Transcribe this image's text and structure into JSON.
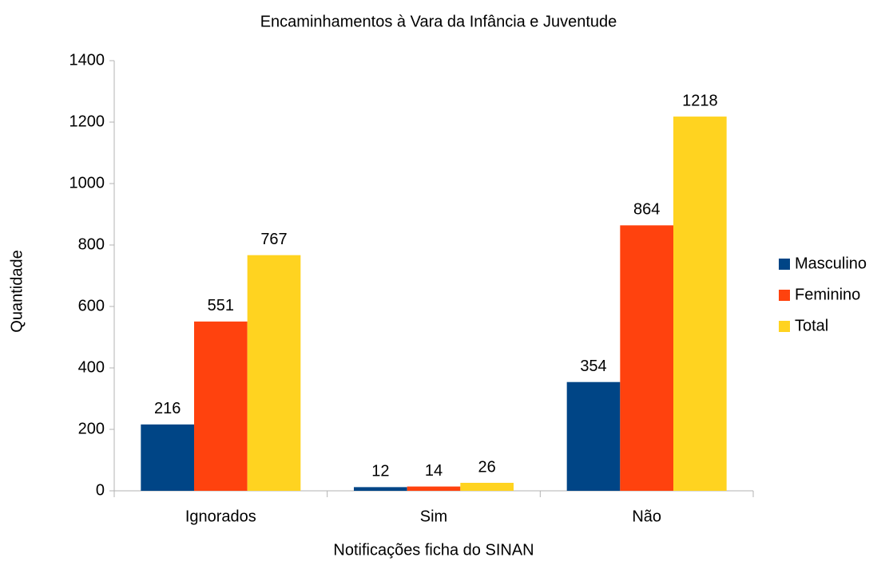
{
  "chart_data": {
    "type": "bar",
    "title": "Encaminhamentos à Vara da Infância e Juventude",
    "x_label": "Notificações ficha do SINAN",
    "y_label": "Quantidade",
    "categories": [
      "Ignorados",
      "Sim",
      "Não"
    ],
    "series": [
      {
        "name": "Masculino",
        "color": "#004586",
        "values": [
          216,
          12,
          354
        ]
      },
      {
        "name": "Feminino",
        "color": "#ff420e",
        "values": [
          551,
          14,
          864
        ]
      },
      {
        "name": "Total",
        "color": "#ffd320",
        "values": [
          767,
          26,
          1218
        ]
      }
    ],
    "ylim": [
      0,
      1400
    ],
    "yticks": [
      0,
      200,
      400,
      600,
      800,
      1000,
      1200,
      1400
    ],
    "grid": false,
    "legend": "right"
  }
}
